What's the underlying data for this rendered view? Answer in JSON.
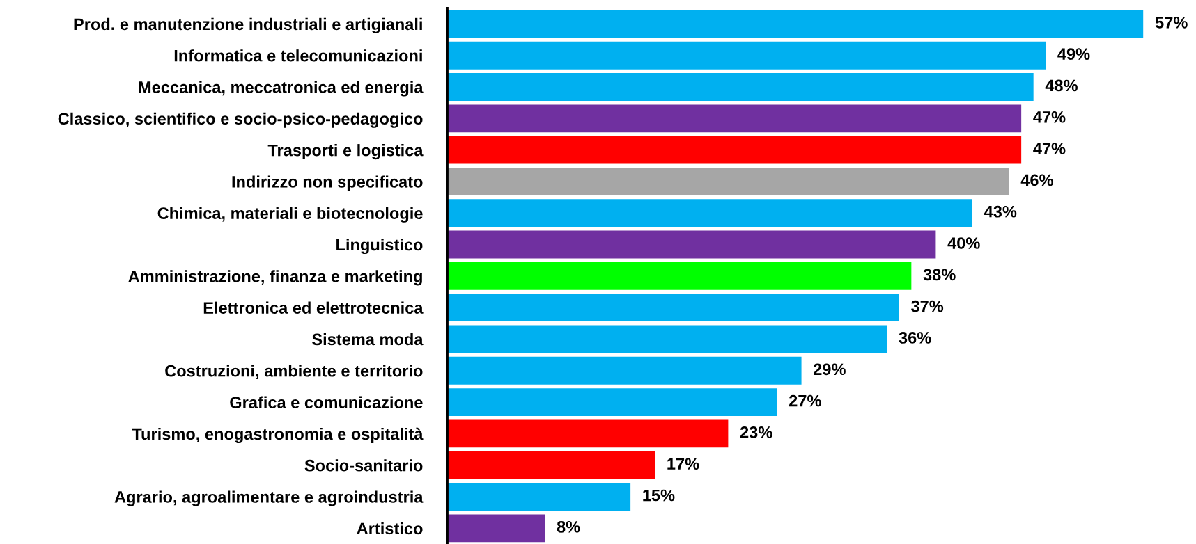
{
  "chart_data": {
    "type": "bar",
    "orientation": "horizontal",
    "categories": [
      "Prod. e manutenzione industriali e artigianali",
      "Informatica e telecomunicazioni",
      "Meccanica, meccatronica ed energia",
      "Classico, scientifico e socio-psico-pedagogico",
      "Trasporti e logistica",
      "Indirizzo non specificato",
      "Chimica, materiali e biotecnologie",
      "Linguistico",
      "Amministrazione, finanza e marketing",
      "Elettronica ed elettrotecnica",
      "Sistema moda",
      "Costruzioni, ambiente e territorio",
      "Grafica e comunicazione",
      "Turismo, enogastronomia e ospitalità",
      "Socio-sanitario",
      "Agrario, agroalimentare e agroindustria",
      "Artistico"
    ],
    "values": [
      57,
      49,
      48,
      47,
      47,
      46,
      43,
      40,
      38,
      37,
      36,
      29,
      27,
      23,
      17,
      15,
      8
    ],
    "value_labels": [
      "57%",
      "49%",
      "48%",
      "47%",
      "47%",
      "46%",
      "43%",
      "40%",
      "38%",
      "37%",
      "36%",
      "29%",
      "27%",
      "23%",
      "17%",
      "15%",
      "8%"
    ],
    "colors": [
      "#00b0f0",
      "#00b0f0",
      "#00b0f0",
      "#7030a0",
      "#ff0000",
      "#a6a6a6",
      "#00b0f0",
      "#7030a0",
      "#00ff00",
      "#00b0f0",
      "#00b0f0",
      "#00b0f0",
      "#00b0f0",
      "#ff0000",
      "#ff0000",
      "#00b0f0",
      "#7030a0"
    ],
    "tick_labels": "y",
    "grid": false,
    "legend": false
  }
}
